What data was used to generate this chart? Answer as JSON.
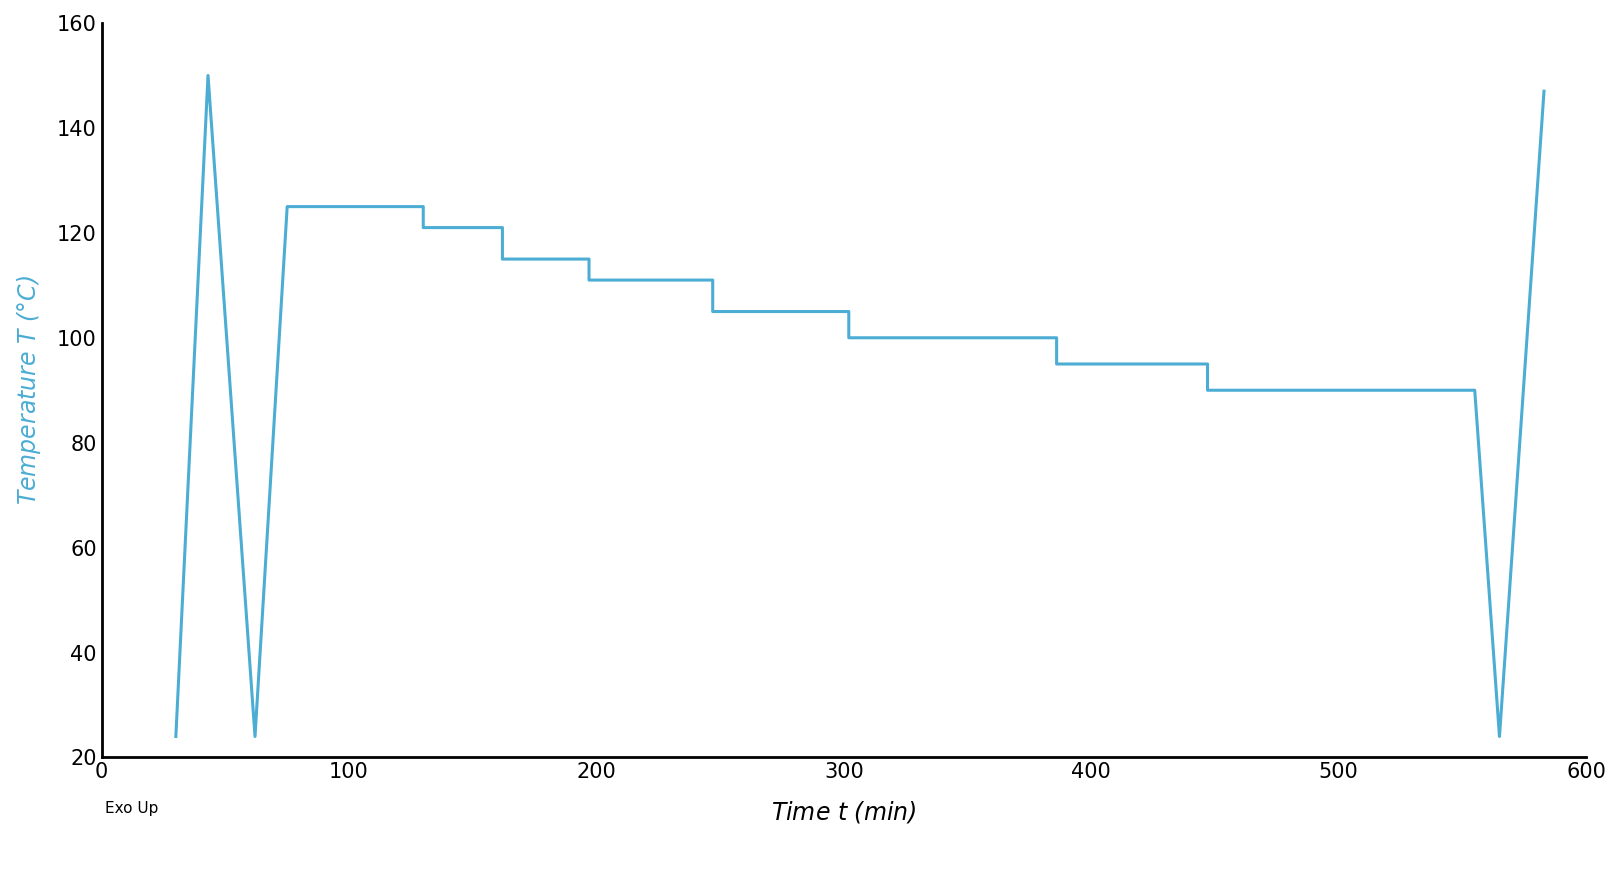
{
  "line_color": "#4BADD4",
  "line_width": 2.2,
  "background_color": "#ffffff",
  "xlabel": "Time $t$ (min)",
  "ylabel": "Temperature $T$ (°C)",
  "xlim": [
    0,
    600
  ],
  "ylim": [
    20,
    160
  ],
  "xticks": [
    0,
    100,
    200,
    300,
    400,
    500,
    600
  ],
  "yticks": [
    20,
    40,
    60,
    80,
    100,
    120,
    140,
    160
  ],
  "exo_label": "Exo Up",
  "xlabel_fontsize": 17,
  "ylabel_fontsize": 17,
  "tick_fontsize": 15,
  "exo_fontsize": 11,
  "waypoints": [
    [
      30,
      24
    ],
    [
      43,
      150
    ],
    [
      62,
      24
    ],
    [
      75,
      125
    ],
    [
      130,
      125
    ],
    [
      130,
      121
    ],
    [
      162,
      121
    ],
    [
      162,
      115
    ],
    [
      197,
      115
    ],
    [
      197,
      111
    ],
    [
      247,
      111
    ],
    [
      247,
      105
    ],
    [
      302,
      105
    ],
    [
      302,
      100
    ],
    [
      386,
      100
    ],
    [
      386,
      95
    ],
    [
      447,
      95
    ],
    [
      447,
      90
    ],
    [
      555,
      90
    ],
    [
      565,
      24
    ],
    [
      583,
      147
    ]
  ]
}
